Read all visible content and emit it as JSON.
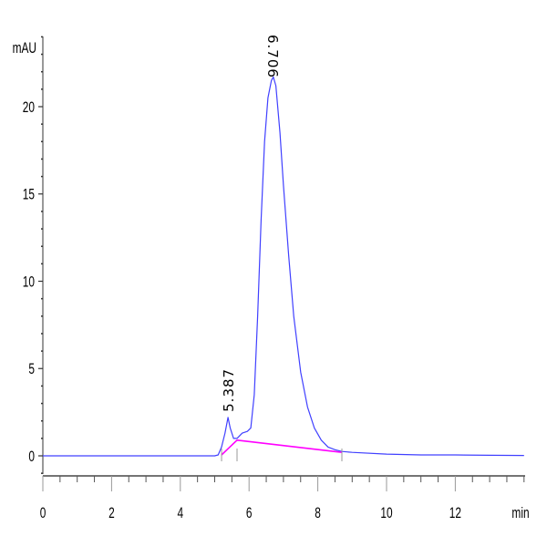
{
  "chart_data": {
    "type": "line",
    "title": "",
    "xlabel": "min",
    "ylabel": "mAU",
    "xlim": [
      0,
      14
    ],
    "ylim": [
      -0.5,
      24
    ],
    "x_ticks": [
      0,
      2,
      4,
      6,
      8,
      10,
      12
    ],
    "y_ticks": [
      0,
      5,
      10,
      15,
      20
    ],
    "grid": false,
    "legend": null,
    "series": [
      {
        "name": "signal",
        "color": "#4040ff",
        "x": [
          0,
          1,
          2,
          3,
          4,
          5,
          5.1,
          5.2,
          5.3,
          5.387,
          5.45,
          5.55,
          5.65,
          5.8,
          5.95,
          6.05,
          6.15,
          6.25,
          6.35,
          6.45,
          6.55,
          6.65,
          6.706,
          6.78,
          6.9,
          7.0,
          7.15,
          7.3,
          7.5,
          7.7,
          7.9,
          8.1,
          8.3,
          8.5,
          8.7,
          9.0,
          10,
          11,
          12,
          13,
          14
        ],
        "y": [
          0.0,
          0.0,
          0.0,
          0.0,
          0.0,
          0.0,
          0.05,
          0.5,
          1.3,
          2.2,
          1.6,
          1.0,
          1.0,
          1.3,
          1.4,
          1.6,
          3.5,
          8.0,
          13.5,
          18.0,
          20.5,
          21.5,
          21.7,
          21.2,
          18.5,
          15.5,
          11.5,
          8.0,
          4.8,
          2.8,
          1.6,
          0.9,
          0.5,
          0.35,
          0.25,
          0.2,
          0.1,
          0.05,
          0.05,
          0.03,
          0.02
        ]
      },
      {
        "name": "baseline",
        "color": "#ff00ff",
        "x": [
          5.2,
          5.65,
          8.7
        ],
        "y": [
          0.05,
          0.9,
          0.2
        ]
      }
    ],
    "annotations": [
      {
        "text": "5.387",
        "x": 5.387,
        "y": 2.2,
        "rotation": -90
      },
      {
        "text": "6.706",
        "x": 6.706,
        "y": 21.7,
        "rotation": 90
      }
    ],
    "integration_marks_x": [
      5.2,
      5.65,
      8.7
    ]
  }
}
